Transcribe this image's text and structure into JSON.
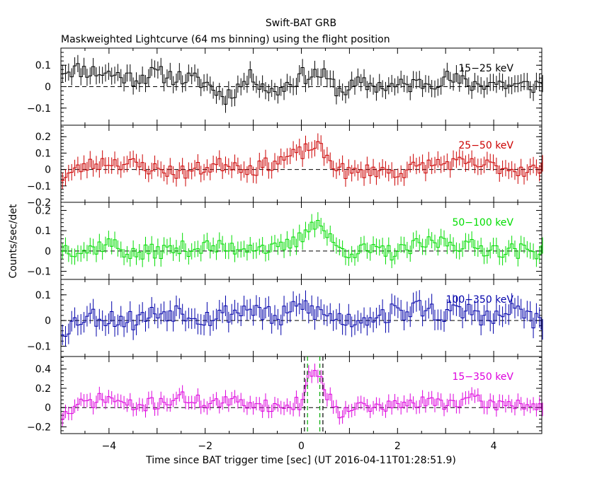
{
  "chart_data": {
    "type": "line",
    "title": "Swift-BAT GRB",
    "subtitle": "Maskweighted Lightcurve (64 ms binning) using the flight position",
    "xlabel": "Time since BAT trigger time [sec] (UT 2016-04-11T01:28:51.9)",
    "ylabel": "Counts/sec/det",
    "xlim": [
      -5,
      5
    ],
    "x_ticks": [
      -4,
      -2,
      0,
      2,
      4
    ],
    "x_tick_labels": [
      "−4",
      "−2",
      "0",
      "2",
      "4"
    ],
    "bin_width_sec": 0.064,
    "vertical_lines": [
      {
        "x": 0.064,
        "color": "#000000",
        "panel": "15-350 keV"
      },
      {
        "x": 0.448,
        "color": "#000000",
        "panel": "15-350 keV"
      },
      {
        "x": 0.128,
        "color": "#00aa00",
        "panel": "15-350 keV"
      },
      {
        "x": 0.384,
        "color": "#00aa00",
        "panel": "15-350 keV"
      }
    ],
    "panels": [
      {
        "name": "15-25 keV",
        "label": "15−25 keV",
        "color": "#000000",
        "ylim": [
          -0.18,
          0.18
        ],
        "y_ticks": [
          -0.1,
          0,
          0.1
        ],
        "y_tick_labels": [
          "−0.1",
          "0",
          "0.1"
        ],
        "error": 0.04,
        "x": [
          -4.6,
          -4,
          -3.5,
          -3,
          -2.5,
          -2,
          -1.6,
          -1,
          -0.6,
          0,
          0.4,
          0.8,
          1.2,
          2,
          2.6,
          3,
          3.5,
          4,
          4.5,
          5
        ],
        "y": [
          0.08,
          0.06,
          0.04,
          0.06,
          0.04,
          0.02,
          -0.05,
          0.05,
          -0.03,
          0.05,
          0.06,
          -0.02,
          0.01,
          0.0,
          0.02,
          0.04,
          0.01,
          0.02,
          0.0,
          0.01
        ],
        "series_seed": 11,
        "noise": 0.04
      },
      {
        "name": "25-50 keV",
        "label": "25−50 keV",
        "color": "#cc0000",
        "ylim": [
          -0.2,
          0.27
        ],
        "y_ticks": [
          -0.2,
          -0.1,
          0,
          0.1,
          0.2
        ],
        "y_tick_labels": [
          "−0.2",
          "−0.1",
          "0",
          "0.1",
          "0.2"
        ],
        "error": 0.05,
        "x": [
          -5,
          -4.5,
          -4,
          -3.5,
          -3,
          -2.5,
          -2,
          -1.5,
          -1,
          -0.5,
          0,
          0.3,
          0.6,
          1,
          1.5,
          2,
          2.5,
          3,
          3.5,
          4,
          4.5,
          5
        ],
        "y": [
          -0.05,
          0.02,
          0.05,
          0.03,
          0.0,
          -0.02,
          0.01,
          0.04,
          0.0,
          0.05,
          0.1,
          0.15,
          0.05,
          -0.03,
          0.0,
          -0.02,
          0.02,
          0.04,
          0.03,
          0.02,
          0.0,
          0.0
        ],
        "series_seed": 23,
        "noise": 0.045
      },
      {
        "name": "50-100 keV",
        "label": "50−100 keV",
        "color": "#00dd00",
        "ylim": [
          -0.14,
          0.24
        ],
        "y_ticks": [
          -0.1,
          0,
          0.1,
          0.2
        ],
        "y_tick_labels": [
          "−0.1",
          "0",
          "0.1",
          "0.2"
        ],
        "error": 0.04,
        "x": [
          -5,
          -4.5,
          -4,
          -3.5,
          -3,
          -2.5,
          -2,
          -1.5,
          -1,
          -0.5,
          0,
          0.2,
          0.4,
          0.7,
          1,
          1.5,
          2,
          2.5,
          3,
          3.5,
          4,
          4.5,
          5
        ],
        "y": [
          0.02,
          0.0,
          0.04,
          -0.02,
          0.0,
          0.01,
          0.02,
          0.01,
          0.03,
          0.0,
          0.06,
          0.15,
          0.13,
          0.02,
          0.0,
          0.0,
          -0.01,
          0.03,
          0.05,
          0.02,
          0.01,
          0.0,
          0.0
        ],
        "series_seed": 37,
        "noise": 0.04
      },
      {
        "name": "100-350 keV",
        "label": "100−350 keV",
        "color": "#0000aa",
        "ylim": [
          -0.14,
          0.16
        ],
        "y_ticks": [
          -0.1,
          0,
          0.1
        ],
        "y_tick_labels": [
          "−0.1",
          "0",
          "0.1"
        ],
        "error": 0.04,
        "x": [
          -5,
          -4.5,
          -4,
          -3.5,
          -3,
          -2.5,
          -2,
          -1.5,
          -1,
          -0.5,
          0,
          0.5,
          1,
          1.5,
          2,
          2.5,
          3,
          3.5,
          4,
          4.5,
          5
        ],
        "y": [
          -0.04,
          0.02,
          0.01,
          0.0,
          0.03,
          0.04,
          0.01,
          0.03,
          0.05,
          0.0,
          0.06,
          0.02,
          0.0,
          0.02,
          0.03,
          0.05,
          0.02,
          0.04,
          0.0,
          0.05,
          -0.02
        ],
        "series_seed": 53,
        "noise": 0.04
      },
      {
        "name": "15-350 keV",
        "label": "15−350 keV",
        "color": "#dd00dd",
        "ylim": [
          -0.27,
          0.53
        ],
        "y_ticks": [
          -0.2,
          0,
          0.2,
          0.4
        ],
        "y_tick_labels": [
          "−0.2",
          "0",
          "0.2",
          "0.4"
        ],
        "error": 0.07,
        "x": [
          -5,
          -4.5,
          -4,
          -3.5,
          -3,
          -2.5,
          -2,
          -1.5,
          -1,
          -0.5,
          0,
          0.15,
          0.25,
          0.35,
          0.5,
          0.8,
          1,
          1.5,
          2,
          2.5,
          3,
          3.5,
          4,
          4.5,
          5
        ],
        "y": [
          -0.1,
          0.05,
          0.1,
          0.0,
          0.05,
          0.1,
          0.05,
          0.05,
          0.05,
          0.0,
          0.05,
          0.3,
          0.42,
          0.38,
          0.15,
          -0.05,
          0.02,
          0.0,
          0.02,
          0.05,
          0.05,
          0.08,
          0.03,
          0.05,
          0.0
        ],
        "series_seed": 71,
        "noise": 0.07
      }
    ]
  }
}
